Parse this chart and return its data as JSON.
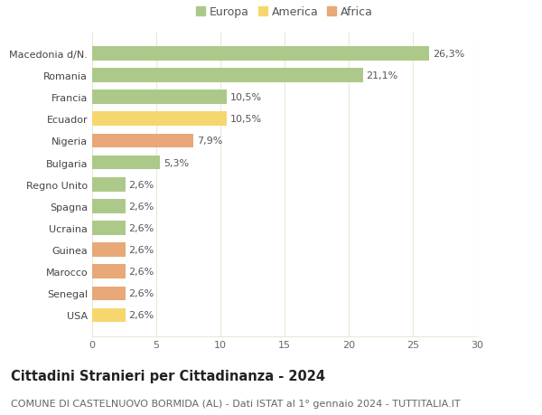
{
  "title": "Cittadini Stranieri per Cittadinanza - 2024",
  "subtitle": "COMUNE DI CASTELNUOVO BORMIDA (AL) - Dati ISTAT al 1° gennaio 2024 - TUTTITALIA.IT",
  "categories": [
    "Macedonia d/N.",
    "Romania",
    "Francia",
    "Ecuador",
    "Nigeria",
    "Bulgaria",
    "Regno Unito",
    "Spagna",
    "Ucraina",
    "Guinea",
    "Marocco",
    "Senegal",
    "USA"
  ],
  "values": [
    26.3,
    21.1,
    10.5,
    10.5,
    7.9,
    5.3,
    2.6,
    2.6,
    2.6,
    2.6,
    2.6,
    2.6,
    2.6
  ],
  "labels": [
    "26,3%",
    "21,1%",
    "10,5%",
    "10,5%",
    "7,9%",
    "5,3%",
    "2,6%",
    "2,6%",
    "2,6%",
    "2,6%",
    "2,6%",
    "2,6%",
    "2,6%"
  ],
  "continents": [
    "Europa",
    "Europa",
    "Europa",
    "America",
    "Africa",
    "Europa",
    "Europa",
    "Europa",
    "Europa",
    "Africa",
    "Africa",
    "Africa",
    "America"
  ],
  "colors": {
    "Europa": "#adc98a",
    "America": "#f5d76e",
    "Africa": "#e8a878"
  },
  "legend_colors": {
    "Europa": "#adc98a",
    "America": "#f5d76e",
    "Africa": "#e8a878"
  },
  "background_color": "#ffffff",
  "grid_color": "#e8e8d8",
  "xlim": [
    0,
    30
  ],
  "xticks": [
    0,
    5,
    10,
    15,
    20,
    25,
    30
  ],
  "title_fontsize": 10.5,
  "subtitle_fontsize": 8,
  "label_fontsize": 8,
  "tick_fontsize": 8,
  "legend_fontsize": 9
}
